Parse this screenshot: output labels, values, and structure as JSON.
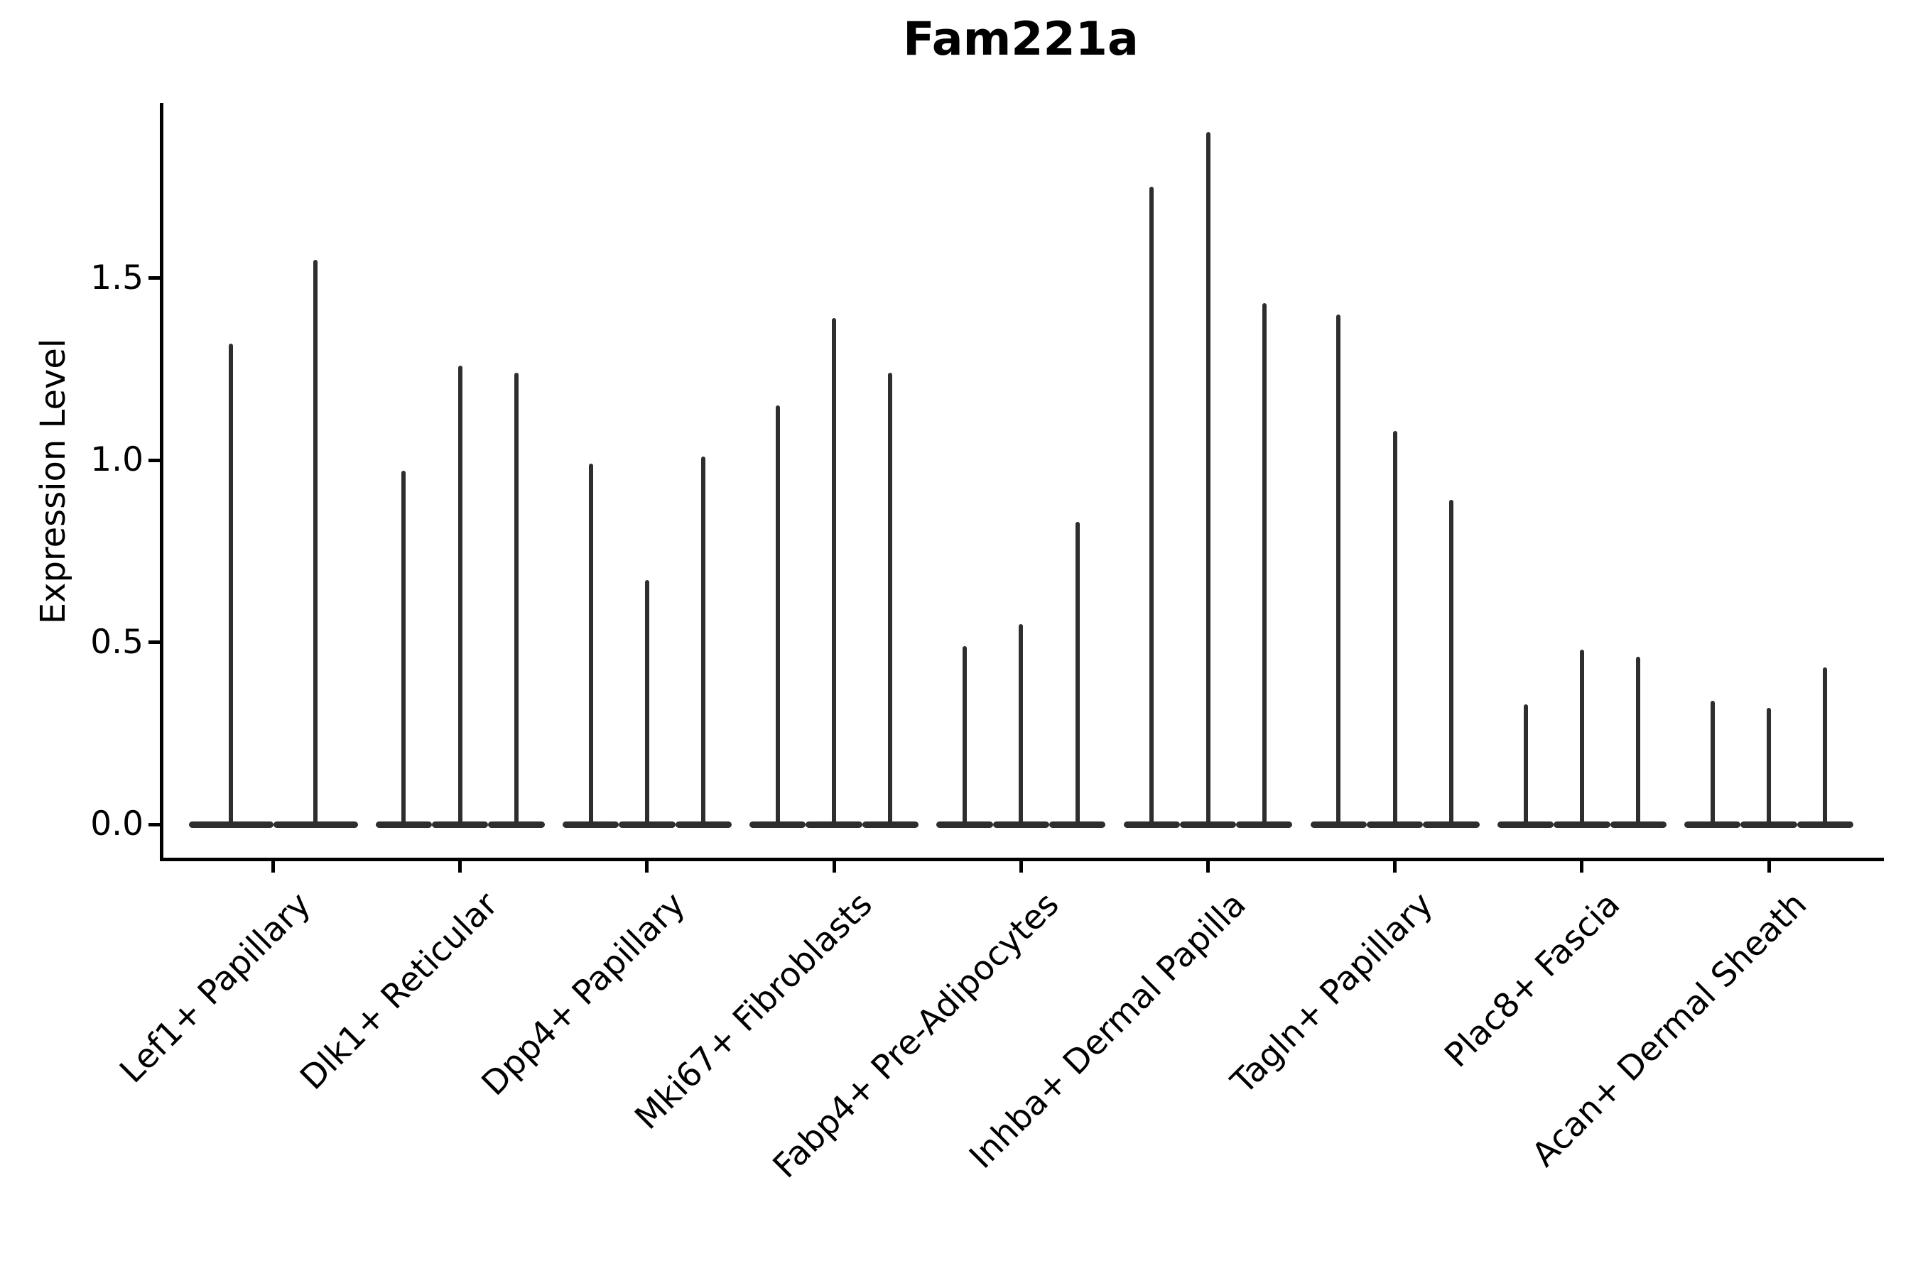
{
  "figure": {
    "title": "Fam221a"
  },
  "chart_data": {
    "type": "violin",
    "title": "Fam221a",
    "xlabel": "",
    "ylabel": "Expression Level",
    "ylim": [
      -0.1,
      1.98
    ],
    "grid": false,
    "legend": null,
    "yticks": {
      "values": [
        0,
        0.5,
        1.0,
        1.5
      ],
      "labels": [
        "0.0",
        "0.5",
        "1.0",
        "1.5"
      ]
    },
    "baseline_value": 0,
    "categories": [
      "Lef1+ Papillary",
      "Dlk1+ Reticular",
      "Dpp4+ Papillary",
      "Mki67+ Fibroblasts",
      "Fabp4+ Pre-Adipocytes",
      "Inhba+ Dermal Papilla",
      "Tagln+ Papillary",
      "Plac8+ Fascia",
      "Acan+ Dermal Sheath"
    ],
    "series": [
      {
        "category": "Lef1+ Papillary",
        "violin_max_values": [
          1.32,
          1.55
        ]
      },
      {
        "category": "Dlk1+ Reticular",
        "violin_max_values": [
          0.97,
          1.26,
          1.24
        ]
      },
      {
        "category": "Dpp4+ Papillary",
        "violin_max_values": [
          0.99,
          0.67,
          1.01
        ]
      },
      {
        "category": "Mki67+ Fibroblasts",
        "violin_max_values": [
          1.15,
          1.39,
          1.24
        ]
      },
      {
        "category": "Fabp4+ Pre-Adipocytes",
        "violin_max_values": [
          0.49,
          0.55,
          0.83
        ]
      },
      {
        "category": "Inhba+ Dermal Papilla",
        "violin_max_values": [
          1.75,
          1.9,
          1.43
        ]
      },
      {
        "category": "Tagln+ Papillary",
        "violin_max_values": [
          1.4,
          1.08,
          0.89
        ]
      },
      {
        "category": "Plac8+ Fascia",
        "violin_max_values": [
          0.33,
          0.48,
          0.46
        ]
      },
      {
        "category": "Acan+ Dermal Sheath",
        "violin_max_values": [
          0.34,
          0.32,
          0.43
        ]
      }
    ],
    "colors": {
      "violin": "#2e2e2e",
      "axis": "#000000",
      "text": "#000000",
      "background": "#ffffff"
    }
  }
}
